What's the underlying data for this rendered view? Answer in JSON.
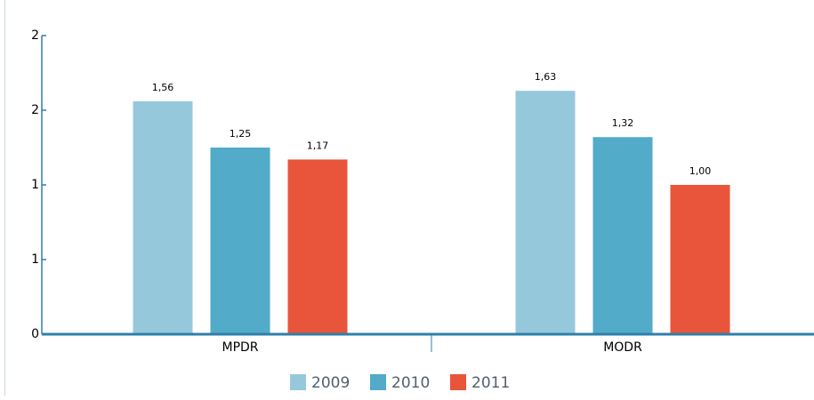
{
  "chart_data": {
    "type": "bar",
    "categories": [
      "MPDR",
      "MODR"
    ],
    "series": [
      {
        "name": "2009",
        "color": "#96c8dc",
        "values": [
          1.56,
          1.63
        ],
        "value_labels": [
          "1,56",
          "1,63"
        ]
      },
      {
        "name": "2010",
        "color": "#52abc9",
        "values": [
          1.25,
          1.32
        ],
        "value_labels": [
          "1,25",
          "1,32"
        ]
      },
      {
        "name": "2011",
        "color": "#e8553a",
        "values": [
          1.17,
          1.0
        ],
        "value_labels": [
          "1,17",
          "1,00"
        ]
      }
    ],
    "ylim": [
      0,
      2
    ],
    "yticks": [
      0,
      {
        "value": 0.5,
        "label": "1"
      },
      1,
      {
        "value": 1.5,
        "label": "2"
      },
      2
    ],
    "legend": "bottom"
  }
}
